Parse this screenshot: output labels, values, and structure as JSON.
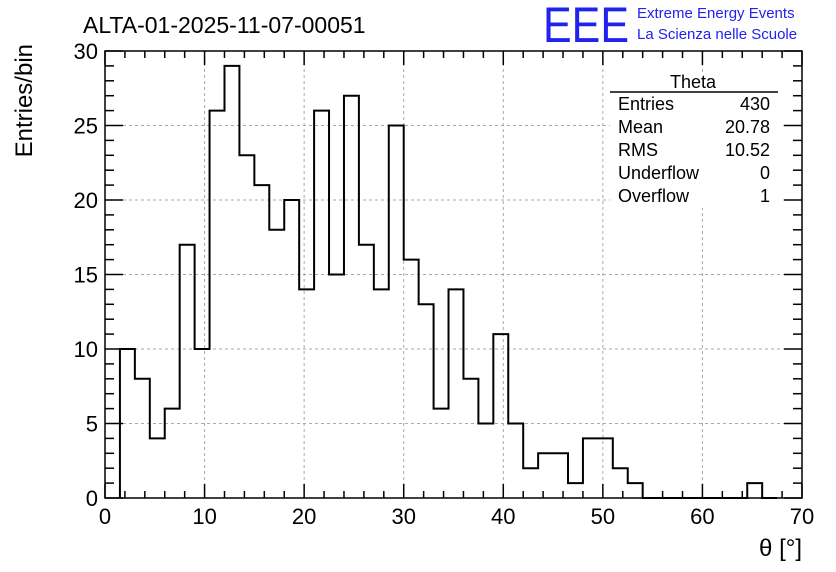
{
  "chart_data": {
    "type": "histogram",
    "title": "ALTA-01-2025-11-07-00051",
    "xlabel": "θ [°]",
    "ylabel": "Entries/bin",
    "xlim": [
      0,
      70
    ],
    "ylim": [
      0,
      30
    ],
    "xticks": [
      "0",
      "10",
      "20",
      "30",
      "40",
      "50",
      "60",
      "70"
    ],
    "yticks": [
      "0",
      "5",
      "10",
      "15",
      "20",
      "25",
      "30"
    ],
    "grid": true,
    "bin_width": 1.5,
    "x_start": 1.5,
    "values": [
      10,
      8,
      4,
      6,
      17,
      10,
      26,
      29,
      23,
      21,
      18,
      20,
      14,
      26,
      15,
      27,
      17,
      14,
      25,
      16,
      13,
      6,
      14,
      8,
      5,
      11,
      5,
      2,
      3,
      3,
      1,
      4,
      4,
      2,
      1,
      0,
      0,
      0,
      0,
      0,
      0,
      0,
      1,
      0
    ]
  },
  "stats_box": {
    "title": "Theta",
    "rows": [
      {
        "label": "Entries",
        "value": "430"
      },
      {
        "label": "Mean",
        "value": "20.78"
      },
      {
        "label": "RMS",
        "value": "10.52"
      },
      {
        "label": "Underflow",
        "value": "0"
      },
      {
        "label": "Overflow",
        "value": "1"
      }
    ]
  },
  "logo": {
    "mark": "EEE",
    "line1": "Extreme Energy Events",
    "line2": "La Scienza nelle Scuole",
    "color": "#2222ee"
  }
}
